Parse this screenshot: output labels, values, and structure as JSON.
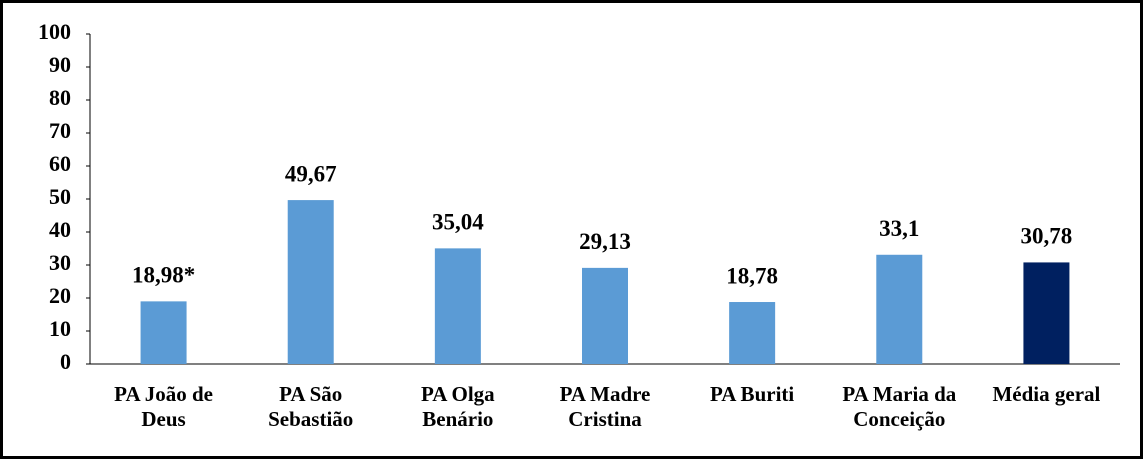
{
  "chart_data": {
    "type": "bar",
    "categories": [
      "PA João de Deus",
      "PA São Sebastião",
      "PA Olga Benário",
      "PA Madre Cristina",
      "PA Buriti",
      "PA Maria da Conceição",
      "Média geral"
    ],
    "values": [
      18.98,
      49.67,
      35.04,
      29.13,
      18.78,
      33.1,
      30.78
    ],
    "value_labels": [
      "18,98*",
      "49,67",
      "35,04",
      "29,13",
      "18,78",
      "33,1",
      "30,78"
    ],
    "colors": [
      "#5b9bd5",
      "#5b9bd5",
      "#5b9bd5",
      "#5b9bd5",
      "#5b9bd5",
      "#5b9bd5",
      "#002060"
    ],
    "ylim": [
      0,
      100
    ],
    "yticks": [
      0,
      10,
      20,
      30,
      40,
      50,
      60,
      70,
      80,
      90,
      100
    ],
    "grid": false
  }
}
